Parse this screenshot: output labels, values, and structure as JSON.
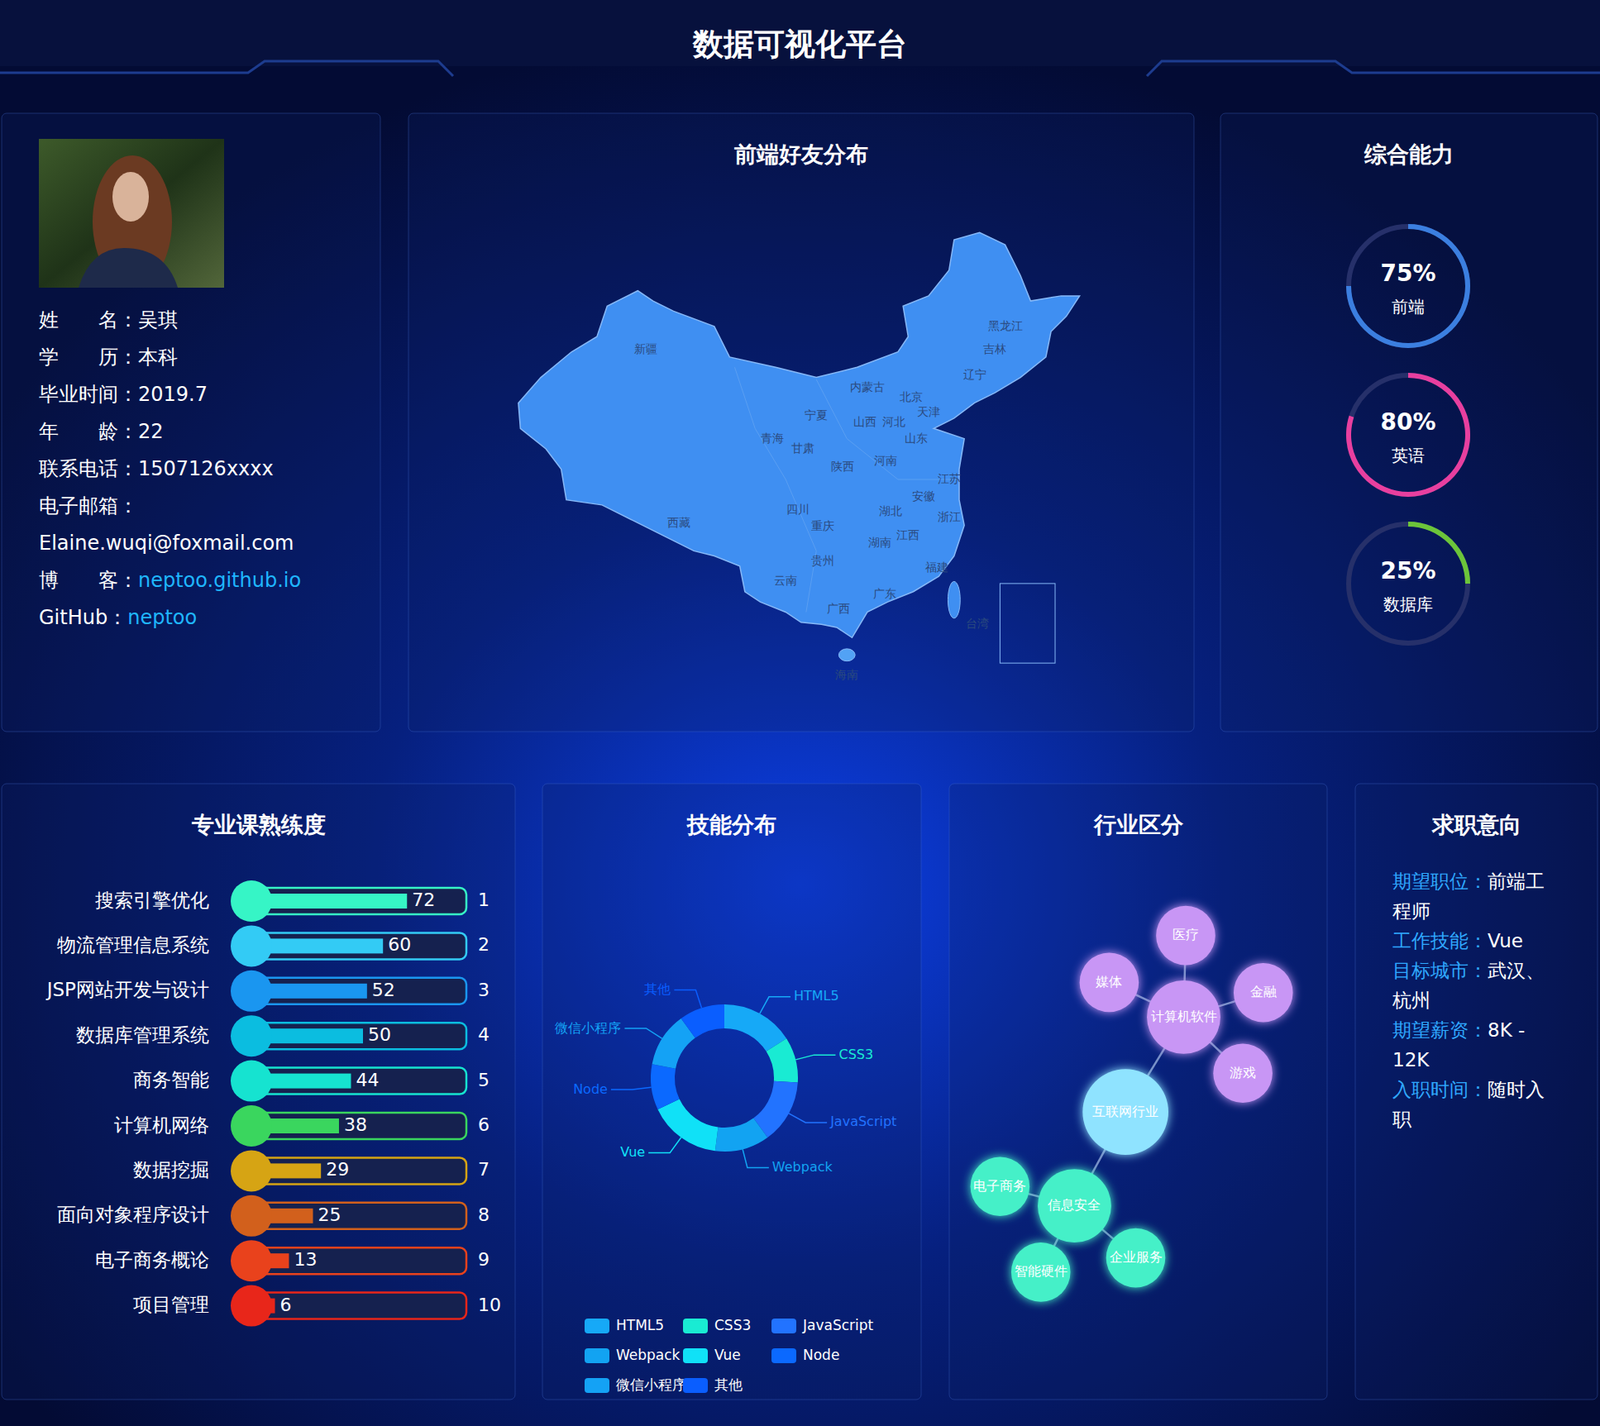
{
  "header": {
    "title": "数据可视化平台"
  },
  "profile": {
    "rows": [
      {
        "label": "姓　　名：",
        "value": "吴琪"
      },
      {
        "label": "学　　历：",
        "value": "本科"
      },
      {
        "label": "毕业时间：",
        "value": "2019.7"
      },
      {
        "label": "年　　龄：",
        "value": "22"
      },
      {
        "label": "联系电话：",
        "value": "1507126xxxx"
      },
      {
        "label": "电子邮箱："
      },
      {
        "value": "Elaine.wuqi@foxmail.com"
      },
      {
        "label": "博　　客：",
        "value": "neptoo.github.io",
        "color": "#1fb6ff"
      },
      {
        "label": "GitHub：",
        "value": "neptoo",
        "color": "#1fb6ff"
      }
    ]
  },
  "map": {
    "title": "前端好友分布",
    "regions": [
      "新疆",
      "西藏",
      "青海",
      "甘肃",
      "宁夏",
      "内蒙古",
      "黑龙江",
      "吉林",
      "辽宁",
      "北京",
      "天津",
      "河北",
      "山西",
      "山东",
      "河南",
      "陕西",
      "四川",
      "重庆",
      "湖北",
      "安徽",
      "江苏",
      "浙江",
      "湖南",
      "江西",
      "贵州",
      "云南",
      "广西",
      "广东",
      "福建",
      "台湾",
      "海南"
    ]
  },
  "chart_data": [
    {
      "type": "ring",
      "title": "综合能力",
      "categories": [
        "前端",
        "英语",
        "数据库"
      ],
      "values": [
        75,
        80,
        25
      ],
      "value_labels": [
        "75%",
        "80%",
        "25%"
      ],
      "colors": [
        "#3b7fe0",
        "#e83f9f",
        "#6cc53a"
      ],
      "ylim": [
        0,
        100
      ]
    },
    {
      "type": "bar",
      "title": "专业课熟练度",
      "orientation": "horizontal",
      "categories": [
        "搜索引擎优化",
        "物流管理信息系统",
        "JSP网站开发与设计",
        "数据库管理系统",
        "商务智能",
        "计算机网络",
        "数据挖掘",
        "面向对象程序设计",
        "电子商务概论",
        "项目管理"
      ],
      "values": [
        72,
        60,
        52,
        50,
        44,
        38,
        29,
        25,
        13,
        6
      ],
      "ranks": [
        1,
        2,
        3,
        4,
        5,
        6,
        7,
        8,
        9,
        10
      ],
      "colors": [
        "#36f5c6",
        "#33cbf5",
        "#1a96f0",
        "#0bbde0",
        "#16e3d0",
        "#3ad65e",
        "#d6a414",
        "#d2601c",
        "#e9421c",
        "#e8261a"
      ],
      "xlim": [
        0,
        100
      ],
      "data_labels": true,
      "tick_labels": false
    },
    {
      "type": "pie",
      "title": "技能分布",
      "categories": [
        "HTML5",
        "CSS3",
        "JavaScript",
        "Webpack",
        "Vue",
        "Node",
        "微信小程序",
        "其他"
      ],
      "values": [
        16,
        10,
        14,
        12,
        16,
        10,
        12,
        10
      ],
      "colors": [
        "#16a9f7",
        "#19ebd3",
        "#2273ff",
        "#12a3f2",
        "#10e1f7",
        "#0b69ff",
        "#14a2f5",
        "#0a5eff"
      ],
      "legend": "bottom"
    },
    {
      "type": "graph",
      "title": "行业区分",
      "nodes": [
        {
          "label": "互联网行业",
          "color": "#8fe3ff"
        },
        {
          "label": "计算机软件",
          "color": "#c896f5",
          "parent": 0
        },
        {
          "label": "医疗",
          "color": "#c896f5",
          "parent": 1
        },
        {
          "label": "媒体",
          "color": "#c896f5",
          "parent": 1
        },
        {
          "label": "金融",
          "color": "#c896f5",
          "parent": 1
        },
        {
          "label": "游戏",
          "color": "#c896f5",
          "parent": 1
        },
        {
          "label": "信息安全",
          "color": "#45f0c8",
          "parent": 0
        },
        {
          "label": "电子商务",
          "color": "#45f0c8",
          "parent": 6
        },
        {
          "label": "智能硬件",
          "color": "#45f0c8",
          "parent": 6
        },
        {
          "label": "企业服务",
          "color": "#45f0c8",
          "parent": 6
        }
      ]
    }
  ],
  "job": {
    "title": "求职意向",
    "rows": [
      {
        "label": "期望职位：",
        "value": "前端工程师"
      },
      {
        "label": "工作技能：",
        "value": "Vue"
      },
      {
        "label": "目标城市：",
        "value": "武汉、杭州"
      },
      {
        "label": "期望薪资：",
        "value": "8K - 12K"
      },
      {
        "label": "入职时间：",
        "value": "随时入职"
      }
    ]
  }
}
